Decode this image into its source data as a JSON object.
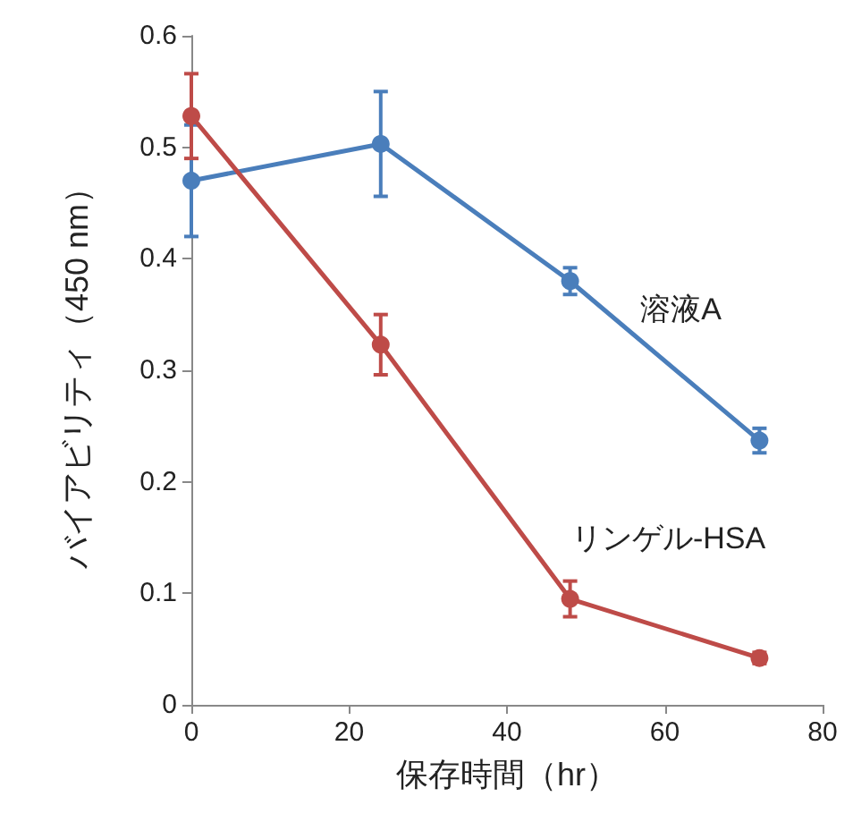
{
  "chart_data": {
    "type": "line",
    "xlabel": "保存時間（hr）",
    "ylabel": "バイアビリティ（450 nm）",
    "xlim": [
      0,
      80
    ],
    "xticks": [
      0,
      20,
      40,
      60,
      80
    ],
    "ylim": [
      0,
      0.6
    ],
    "yticks": [
      0,
      0.1,
      0.2,
      0.3,
      0.4,
      0.5,
      0.6
    ],
    "grid": false,
    "legend": false,
    "marker": "circle",
    "line_style": "solid",
    "series": [
      {
        "name": "溶液A",
        "color": "#4a7ebb",
        "x": [
          0,
          24,
          48,
          72
        ],
        "values": [
          0.47,
          0.503,
          0.38,
          0.237
        ],
        "errors": [
          0.05,
          0.047,
          0.012,
          0.011
        ]
      },
      {
        "name": "リンゲル-HSA",
        "color": "#be4b48",
        "x": [
          0,
          24,
          48,
          72
        ],
        "values": [
          0.528,
          0.323,
          0.095,
          0.042
        ],
        "errors": [
          0.038,
          0.027,
          0.016,
          0.005
        ]
      }
    ]
  }
}
